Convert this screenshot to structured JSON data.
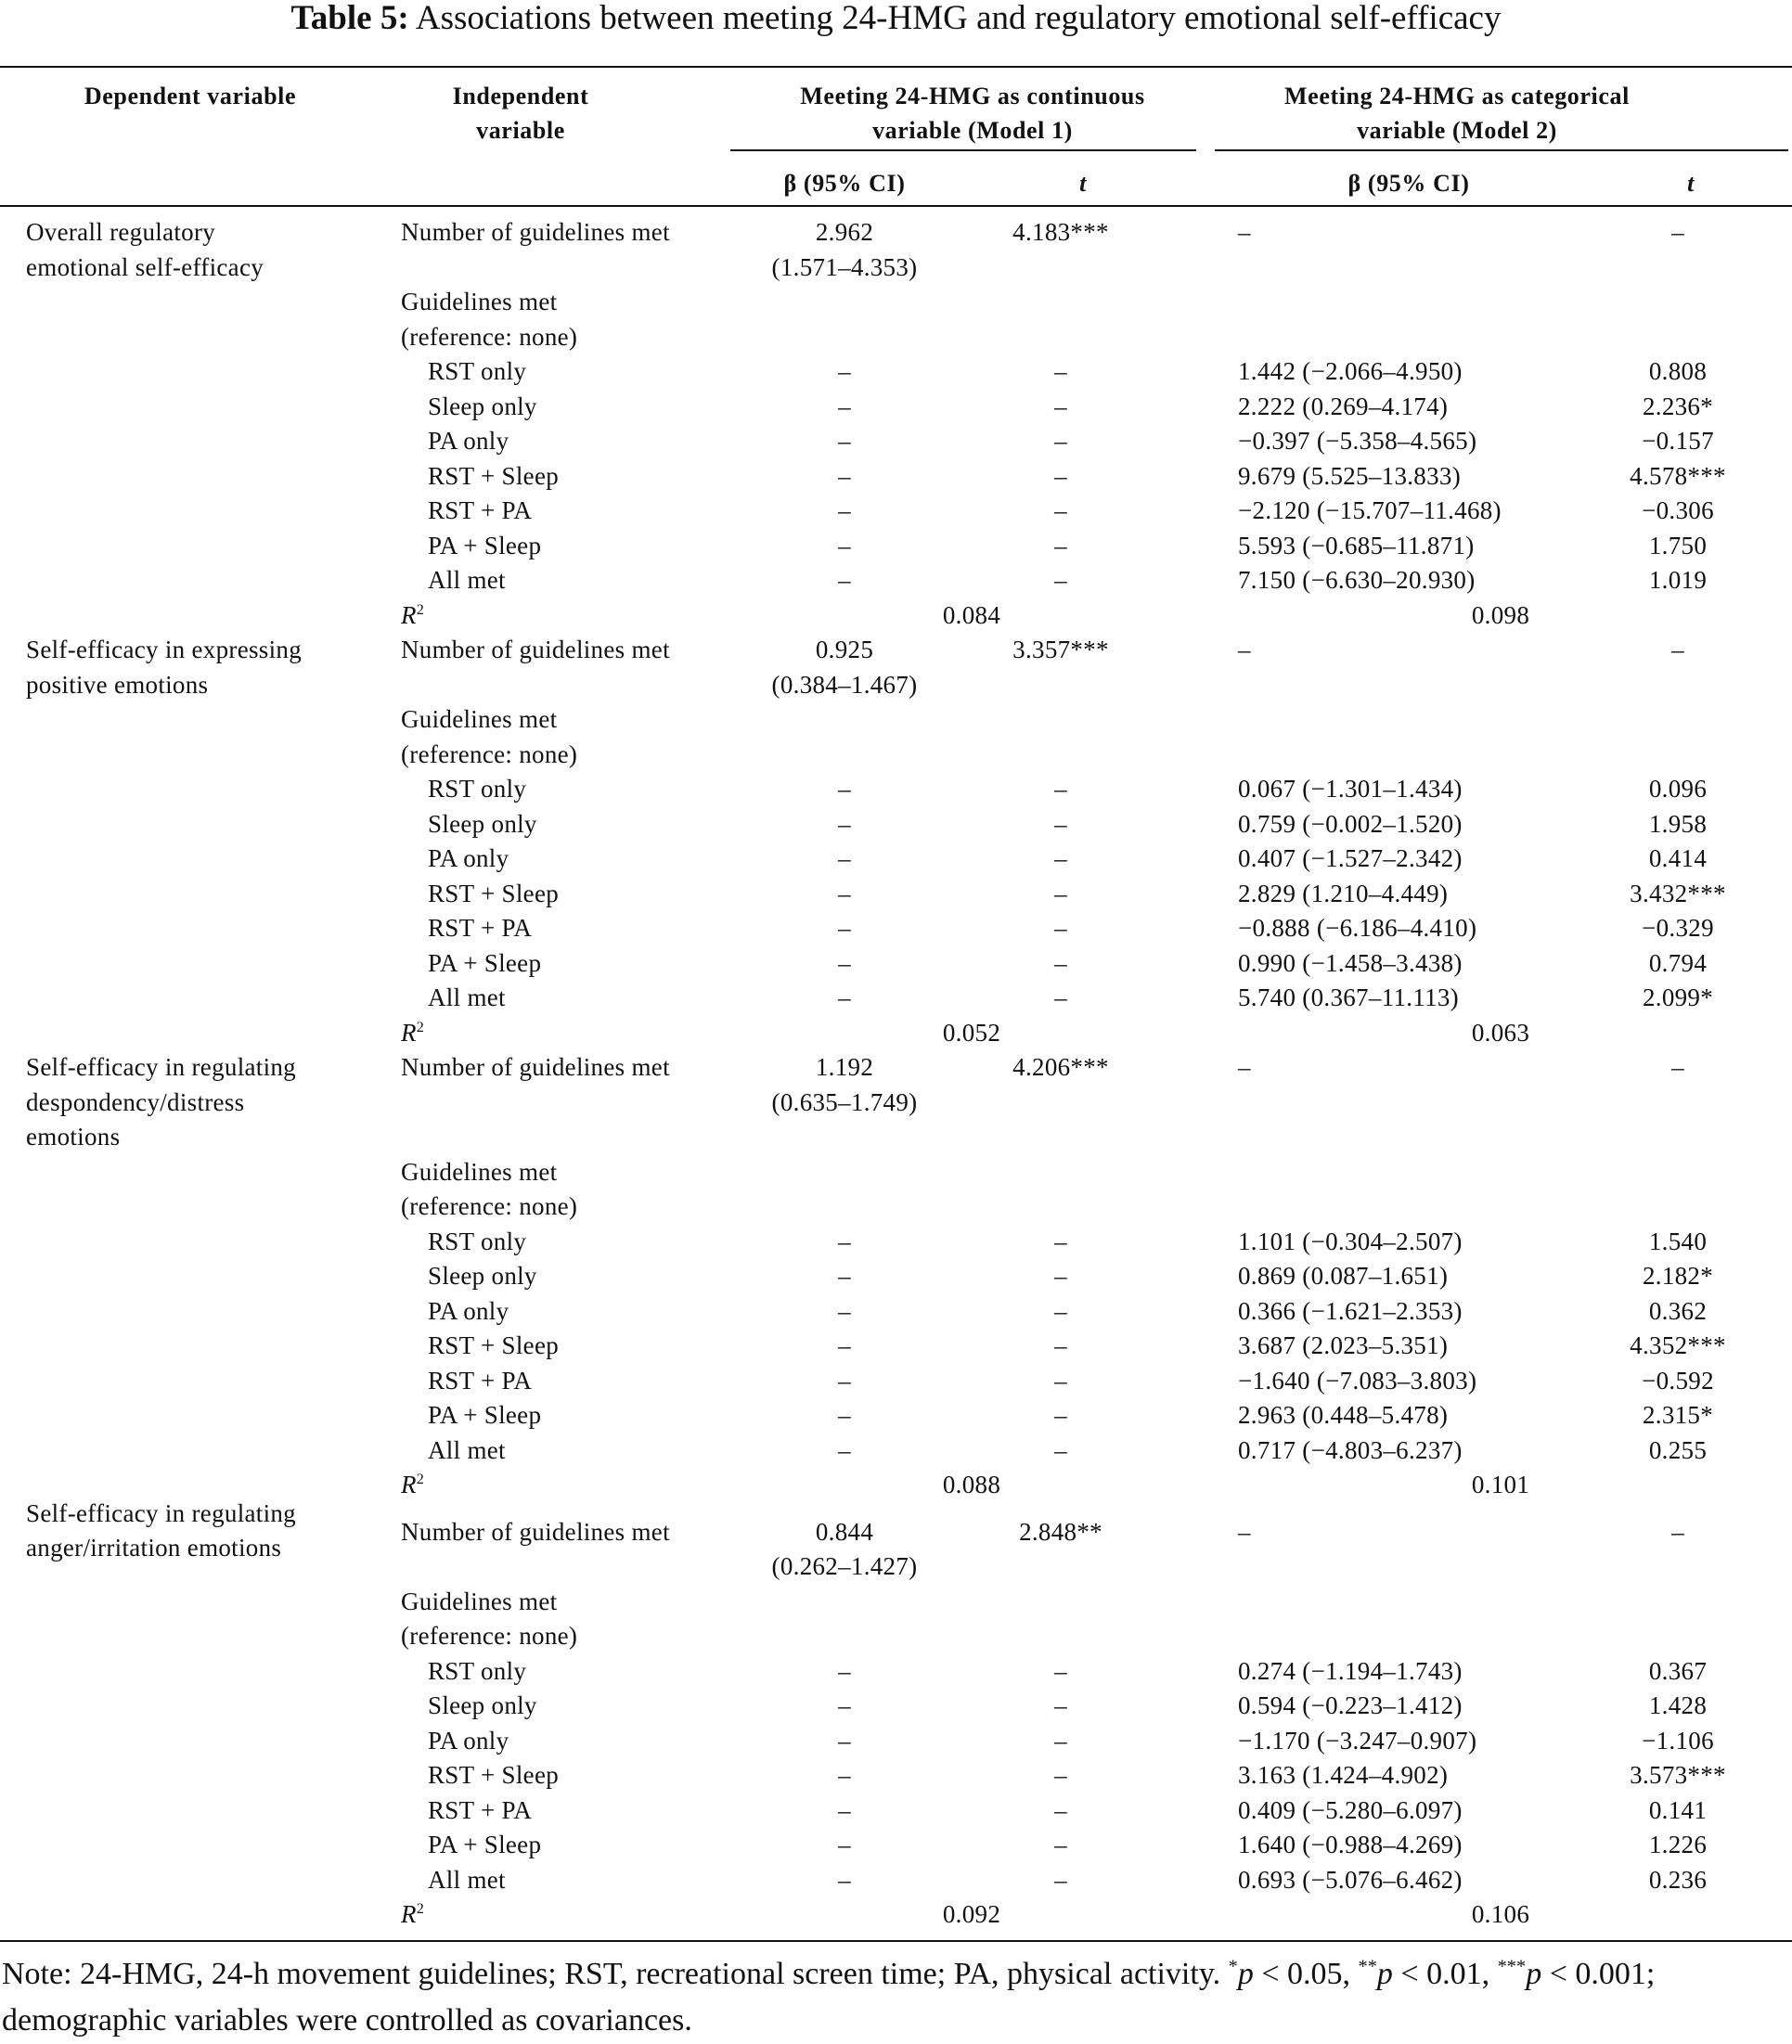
{
  "title": {
    "label": "Table 5:",
    "text": "Associations between meeting 24-HMG and regulatory emotional self-efficacy"
  },
  "headers": {
    "dependent": "Dependent variable",
    "independent_1": "Independent",
    "independent_2": "variable",
    "model1_1": "Meeting 24-HMG as continuous",
    "model1_2": "variable (Model 1)",
    "model2_1": "Meeting 24-HMG as categorical",
    "model2_2": "variable (Model 2)",
    "beta": "β (95% CI)",
    "t": "t"
  },
  "r2_label": "R",
  "r2_sup": "2",
  "blocks": [
    {
      "dependent": [
        "Overall regulatory",
        "emotional self-efficacy"
      ],
      "number_row": {
        "label": "Number of guidelines met",
        "b1": "2.962",
        "b1_ci": "(1.571–4.353)",
        "t1": "4.183***",
        "b2": "–",
        "t2": "–"
      },
      "extra_blank": false,
      "guidelines_label": [
        "Guidelines met",
        "(reference: none)"
      ],
      "rows": [
        {
          "label": "RST only",
          "b1": "–",
          "t1": "–",
          "b2": "1.442 (−2.066–4.950)",
          "t2": "0.808"
        },
        {
          "label": "Sleep only",
          "b1": "–",
          "t1": "–",
          "b2": "2.222 (0.269–4.174)",
          "t2": "2.236*"
        },
        {
          "label": "PA only",
          "b1": "–",
          "t1": "–",
          "b2": "−0.397 (−5.358–4.565)",
          "t2": "−0.157"
        },
        {
          "label": "RST + Sleep",
          "b1": "–",
          "t1": "–",
          "b2": "9.679 (5.525–13.833)",
          "t2": "4.578***"
        },
        {
          "label": "RST + PA",
          "b1": "–",
          "t1": "–",
          "b2": "−2.120 (−15.707–11.468)",
          "t2": "−0.306"
        },
        {
          "label": "PA + Sleep",
          "b1": "–",
          "t1": "–",
          "b2": "5.593 (−0.685–11.871)",
          "t2": "1.750"
        },
        {
          "label": "All met",
          "b1": "–",
          "t1": "–",
          "b2": "7.150 (−6.630–20.930)",
          "t2": "1.019"
        }
      ],
      "r2": {
        "model1": "0.084",
        "model2": "0.098"
      }
    },
    {
      "dependent": [
        "Self-efficacy in expressing",
        "positive emotions"
      ],
      "number_row": {
        "label": "Number of guidelines met",
        "b1": "0.925",
        "b1_ci": "(0.384–1.467)",
        "t1": "3.357***",
        "b2": "–",
        "t2": "–"
      },
      "extra_blank": false,
      "guidelines_label": [
        "Guidelines met",
        "(reference: none)"
      ],
      "rows": [
        {
          "label": "RST only",
          "b1": "–",
          "t1": "–",
          "b2": "0.067 (−1.301–1.434)",
          "t2": "0.096"
        },
        {
          "label": "Sleep only",
          "b1": "–",
          "t1": "–",
          "b2": "0.759 (−0.002–1.520)",
          "t2": "1.958"
        },
        {
          "label": "PA only",
          "b1": "–",
          "t1": "–",
          "b2": "0.407 (−1.527–2.342)",
          "t2": "0.414"
        },
        {
          "label": "RST + Sleep",
          "b1": "–",
          "t1": "–",
          "b2": "2.829 (1.210–4.449)",
          "t2": "3.432***"
        },
        {
          "label": "RST + PA",
          "b1": "–",
          "t1": "–",
          "b2": "−0.888 (−6.186–4.410)",
          "t2": "−0.329"
        },
        {
          "label": "PA + Sleep",
          "b1": "–",
          "t1": "–",
          "b2": "0.990 (−1.458–3.438)",
          "t2": "0.794"
        },
        {
          "label": "All met",
          "b1": "–",
          "t1": "–",
          "b2": "5.740 (0.367–11.113)",
          "t2": "2.099*"
        }
      ],
      "r2": {
        "model1": "0.052",
        "model2": "0.063"
      }
    },
    {
      "dependent": [
        "Self-efficacy in regulating",
        "despondency/distress",
        "emotions"
      ],
      "number_row": {
        "label": "Number of guidelines met",
        "b1": "1.192",
        "b1_ci": "(0.635–1.749)",
        "t1": "4.206***",
        "b2": "–",
        "t2": "–"
      },
      "extra_blank": true,
      "guidelines_label": [
        "Guidelines met",
        "(reference: none)"
      ],
      "rows": [
        {
          "label": "RST only",
          "b1": "–",
          "t1": "–",
          "b2": "1.101 (−0.304–2.507)",
          "t2": "1.540"
        },
        {
          "label": "Sleep only",
          "b1": "–",
          "t1": "–",
          "b2": "0.869 (0.087–1.651)",
          "t2": "2.182*"
        },
        {
          "label": "PA only",
          "b1": "–",
          "t1": "–",
          "b2": "0.366 (−1.621–2.353)",
          "t2": "0.362"
        },
        {
          "label": "RST + Sleep",
          "b1": "–",
          "t1": "–",
          "b2": "3.687 (2.023–5.351)",
          "t2": "4.352***"
        },
        {
          "label": "RST + PA",
          "b1": "–",
          "t1": "–",
          "b2": "−1.640 (−7.083–3.803)",
          "t2": "−0.592"
        },
        {
          "label": "PA + Sleep",
          "b1": "–",
          "t1": "–",
          "b2": "2.963 (0.448–5.478)",
          "t2": "2.315*"
        },
        {
          "label": "All met",
          "b1": "–",
          "t1": "–",
          "b2": "0.717 (−4.803–6.237)",
          "t2": "0.255"
        }
      ],
      "r2": {
        "model1": "0.088",
        "model2": "0.101"
      }
    },
    {
      "dependent": [
        "Self-efficacy in regulating",
        "anger/irritation emotions"
      ],
      "number_row": {
        "label": "Number of guidelines met",
        "b1": "0.844",
        "b1_ci": "(0.262–1.427)",
        "t1": "2.848**",
        "b2": "–",
        "t2": "–"
      },
      "extra_blank": false,
      "guidelines_label": [
        "Guidelines met",
        "(reference: none)"
      ],
      "rows": [
        {
          "label": "RST only",
          "b1": "–",
          "t1": "–",
          "b2": "0.274 (−1.194–1.743)",
          "t2": "0.367"
        },
        {
          "label": "Sleep only",
          "b1": "–",
          "t1": "–",
          "b2": "0.594 (−0.223–1.412)",
          "t2": "1.428"
        },
        {
          "label": "PA only",
          "b1": "–",
          "t1": "–",
          "b2": "−1.170 (−3.247–0.907)",
          "t2": "−1.106"
        },
        {
          "label": "RST + Sleep",
          "b1": "–",
          "t1": "–",
          "b2": "3.163 (1.424–4.902)",
          "t2": "3.573***"
        },
        {
          "label": "RST + PA",
          "b1": "–",
          "t1": "–",
          "b2": "0.409 (−5.280–6.097)",
          "t2": "0.141"
        },
        {
          "label": "PA + Sleep",
          "b1": "–",
          "t1": "–",
          "b2": "1.640 (−0.988–4.269)",
          "t2": "1.226"
        },
        {
          "label": "All met",
          "b1": "–",
          "t1": "–",
          "b2": "0.693 (−5.076–6.462)",
          "t2": "0.236"
        }
      ],
      "r2": {
        "model1": "0.092",
        "model2": "0.106"
      }
    }
  ],
  "note": {
    "part1": "Note: 24-HMG, 24-h movement guidelines; RST, recreational screen time; PA, physical activity. ",
    "s1": "*",
    "p1": "p",
    "v1": " < 0.05, ",
    "s2": "**",
    "p2": "p",
    "v2": " < 0.01, ",
    "s3": "***",
    "p3": "p",
    "v3": " < 0.001; demographic variables were controlled as covariances."
  }
}
